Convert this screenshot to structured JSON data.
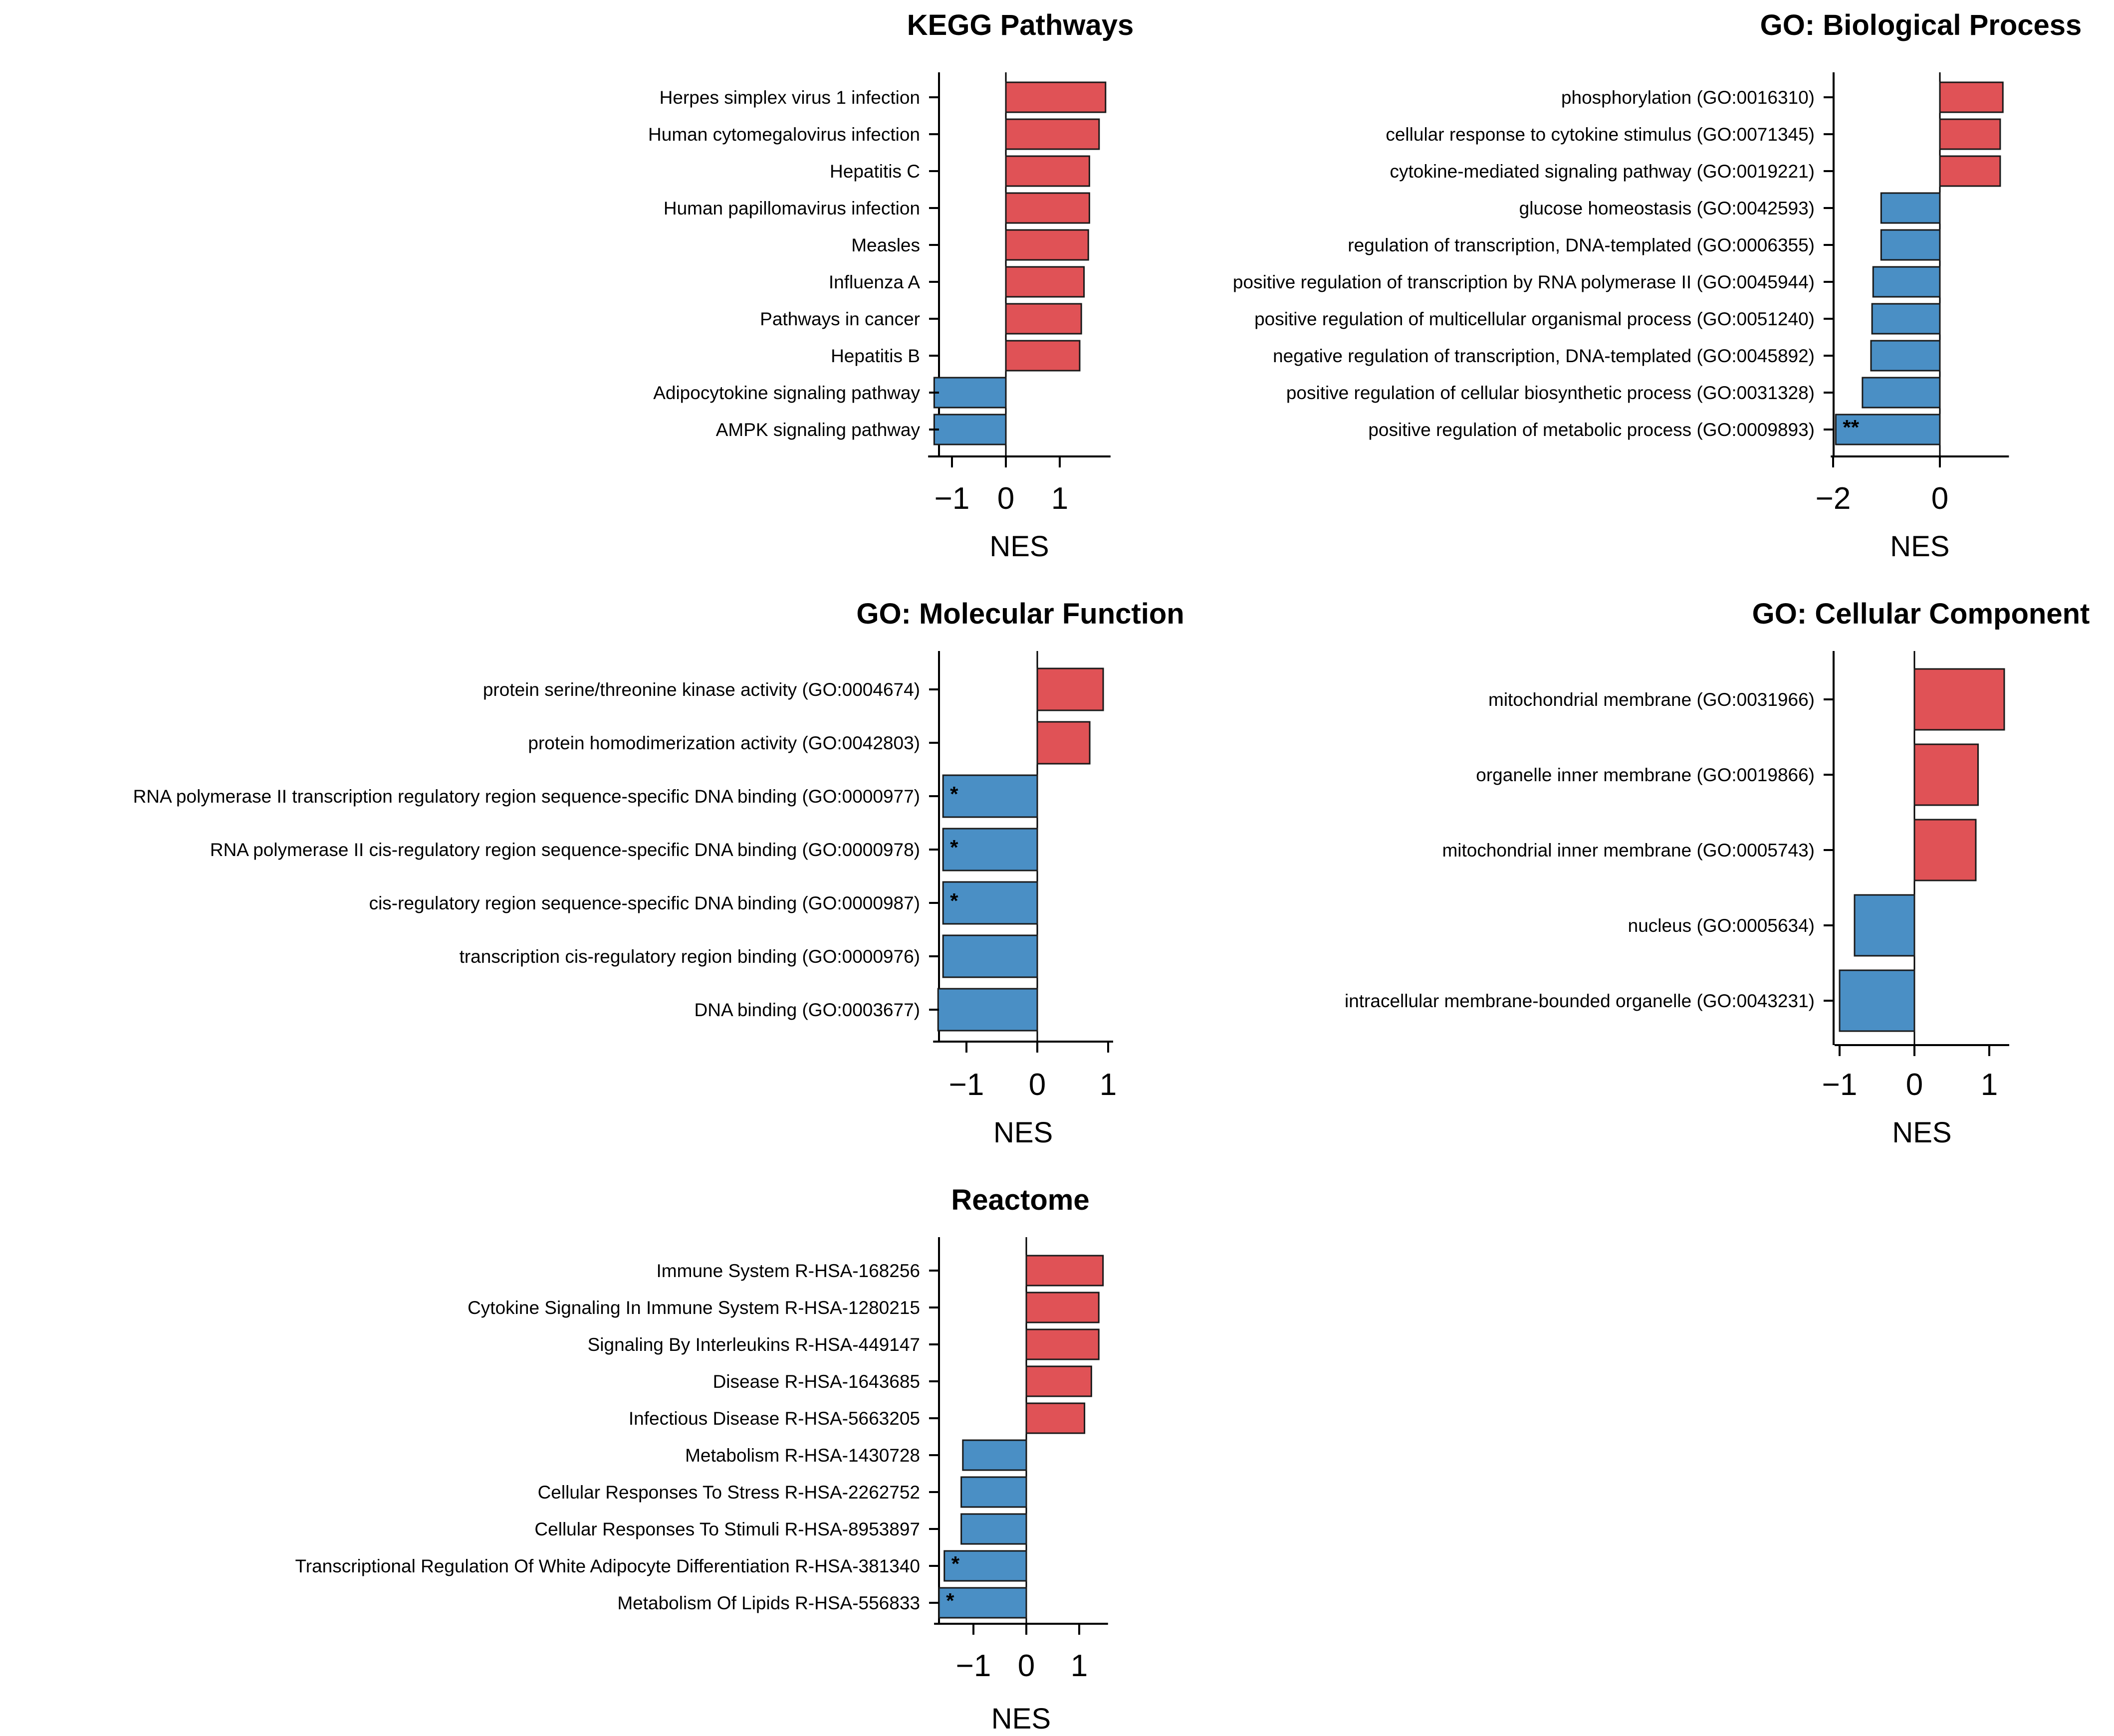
{
  "colors": {
    "positive": "#e05256",
    "negative": "#4a8fc5",
    "edge": "#1a1a1a"
  },
  "chart_data": [
    {
      "type": "bar",
      "orientation": "horizontal",
      "title": "KEGG Pathways",
      "xlabel": "NES",
      "xlim": [
        -1.35,
        1.85
      ],
      "xticks": [
        -1,
        0,
        1
      ],
      "xtick_labels": [
        "−1",
        "0",
        "1"
      ],
      "categories": [
        "Herpes simplex virus 1 infection",
        "Human cytomegalovirus infection",
        "Hepatitis C",
        "Human papillomavirus infection",
        "Measles",
        "Influenza A",
        "Pathways in cancer",
        "Hepatitis B",
        "Adipocytokine signaling pathway",
        "AMPK signaling pathway"
      ],
      "values": [
        1.85,
        1.73,
        1.55,
        1.55,
        1.53,
        1.45,
        1.4,
        1.37,
        -1.33,
        -1.33
      ],
      "significance": [
        "",
        "",
        "",
        "",
        "",
        "",
        "",
        "",
        "",
        ""
      ]
    },
    {
      "type": "bar",
      "orientation": "horizontal",
      "title": "GO: Biological Process",
      "xlabel": "NES",
      "xlim": [
        -1.95,
        1.2
      ],
      "xticks": [
        -2,
        0
      ],
      "xtick_labels": [
        "−2",
        "0"
      ],
      "categories": [
        "phosphorylation (GO:0016310)",
        "cellular response to cytokine stimulus (GO:0071345)",
        "cytokine-mediated signaling pathway (GO:0019221)",
        "glucose homeostasis (GO:0042593)",
        "regulation of transcription, DNA-templated (GO:0006355)",
        "positive regulation of transcription by RNA polymerase II (GO:0045944)",
        "positive regulation of multicellular organismal process (GO:0051240)",
        "negative regulation of transcription, DNA-templated (GO:0045892)",
        "positive regulation of cellular biosynthetic process (GO:0031328)",
        "positive regulation of metabolic process (GO:0009893)"
      ],
      "values": [
        1.18,
        1.13,
        1.13,
        -1.1,
        -1.1,
        -1.25,
        -1.27,
        -1.29,
        -1.45,
        -1.95
      ],
      "significance": [
        "",
        "",
        "",
        "",
        "",
        "",
        "",
        "",
        "",
        "**"
      ]
    },
    {
      "type": "bar",
      "orientation": "horizontal",
      "title": "GO: Molecular Function",
      "xlabel": "NES",
      "xlim": [
        -1.4,
        1.0
      ],
      "xticks": [
        -1,
        0,
        1
      ],
      "xtick_labels": [
        "−1",
        "0",
        "1"
      ],
      "categories": [
        "protein serine/threonine kinase activity (GO:0004674)",
        "protein homodimerization activity (GO:0042803)",
        "RNA polymerase II transcription regulatory region sequence-specific DNA binding (GO:0000977)",
        "RNA polymerase II cis-regulatory region sequence-specific DNA binding (GO:0000978)",
        "cis-regulatory region sequence-specific DNA binding (GO:0000987)",
        "transcription cis-regulatory region binding (GO:0000976)",
        "DNA binding (GO:0003677)"
      ],
      "values": [
        0.93,
        0.74,
        -1.33,
        -1.33,
        -1.33,
        -1.33,
        -1.4
      ],
      "significance": [
        "",
        "",
        "*",
        "*",
        "*",
        "",
        ""
      ]
    },
    {
      "type": "bar",
      "orientation": "horizontal",
      "title": "GO: Cellular Component",
      "xlabel": "NES",
      "xlim": [
        -1.0,
        1.2
      ],
      "xticks": [
        -1,
        0,
        1
      ],
      "xtick_labels": [
        "−1",
        "0",
        "1"
      ],
      "categories": [
        "mitochondrial membrane (GO:0031966)",
        "organelle inner membrane (GO:0019866)",
        "mitochondrial inner membrane (GO:0005743)",
        "nucleus (GO:0005634)",
        "intracellular membrane-bounded organelle (GO:0043231)"
      ],
      "values": [
        1.2,
        0.85,
        0.82,
        -0.8,
        -1.0
      ],
      "significance": [
        "",
        "",
        "",
        "",
        ""
      ]
    },
    {
      "type": "bar",
      "orientation": "horizontal",
      "title": "Reactome",
      "xlabel": "NES",
      "xlim": [
        -1.65,
        1.45
      ],
      "xticks": [
        -1,
        0,
        1
      ],
      "xtick_labels": [
        "−1",
        "0",
        "1"
      ],
      "categories": [
        "Immune System R-HSA-168256",
        "Cytokine Signaling In Immune System R-HSA-1280215",
        "Signaling By Interleukins R-HSA-449147",
        "Disease R-HSA-1643685",
        "Infectious Disease R-HSA-5663205",
        "Metabolism R-HSA-1430728",
        "Cellular Responses To Stress R-HSA-2262752",
        "Cellular Responses To Stimuli R-HSA-8953897",
        "Transcriptional Regulation Of White Adipocyte Differentiation R-HSA-381340",
        "Metabolism Of Lipids R-HSA-556833"
      ],
      "values": [
        1.45,
        1.37,
        1.37,
        1.23,
        1.1,
        -1.2,
        -1.23,
        -1.23,
        -1.55,
        -1.65
      ],
      "significance": [
        "",
        "",
        "",
        "",
        "",
        "",
        "",
        "",
        "*",
        "*"
      ]
    }
  ]
}
